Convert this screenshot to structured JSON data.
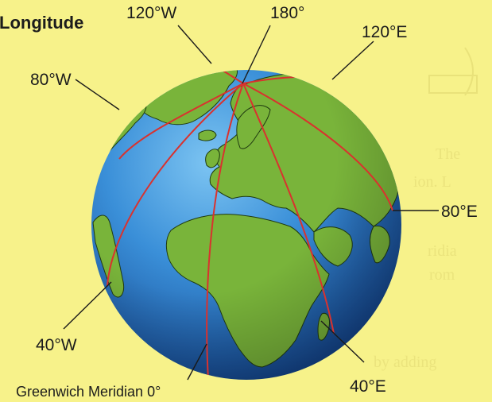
{
  "title": "Longitude",
  "labels": {
    "w120": "120°W",
    "deg180": "180°",
    "e120": "120°E",
    "w80": "80°W",
    "e80": "80°E",
    "w40": "40°W",
    "e40": "40°E",
    "greenwich": "Greenwich Meridian 0°"
  },
  "colors": {
    "background": "#f7f28a",
    "ocean": "#2a7fce",
    "land": "#79b43a",
    "meridian_lines": "#d9322e"
  }
}
